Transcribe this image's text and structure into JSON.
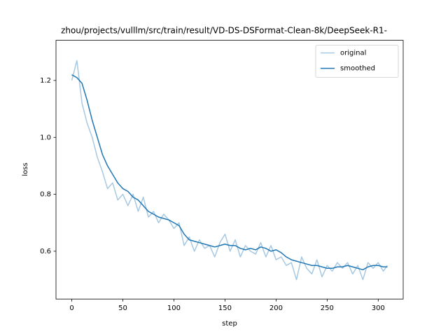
{
  "chart_data": {
    "type": "line",
    "title": "zhou/projects/vulllm/src/train/result/VD-DS-DSFormat-Clean-8k/DeepSeek-R1-",
    "xlabel": "step",
    "ylabel": "loss",
    "x": [
      0,
      5,
      10,
      15,
      20,
      25,
      30,
      35,
      40,
      45,
      50,
      55,
      60,
      65,
      70,
      75,
      80,
      85,
      90,
      95,
      100,
      105,
      110,
      115,
      120,
      125,
      130,
      135,
      140,
      145,
      150,
      155,
      160,
      165,
      170,
      175,
      180,
      185,
      190,
      195,
      200,
      205,
      210,
      215,
      220,
      225,
      230,
      235,
      240,
      245,
      250,
      255,
      260,
      265,
      270,
      275,
      280,
      285,
      290,
      295,
      300,
      305,
      309
    ],
    "series": [
      {
        "name": "original",
        "color": "#a6c8e2",
        "values": [
          1.2,
          1.27,
          1.12,
          1.05,
          1.0,
          0.93,
          0.88,
          0.82,
          0.84,
          0.78,
          0.8,
          0.76,
          0.8,
          0.74,
          0.79,
          0.72,
          0.74,
          0.7,
          0.73,
          0.71,
          0.68,
          0.7,
          0.62,
          0.65,
          0.6,
          0.64,
          0.61,
          0.62,
          0.58,
          0.63,
          0.66,
          0.6,
          0.64,
          0.58,
          0.62,
          0.6,
          0.59,
          0.63,
          0.58,
          0.62,
          0.57,
          0.58,
          0.55,
          0.56,
          0.5,
          0.58,
          0.54,
          0.52,
          0.57,
          0.51,
          0.55,
          0.53,
          0.56,
          0.54,
          0.56,
          0.52,
          0.55,
          0.5,
          0.56,
          0.54,
          0.56,
          0.53,
          0.55
        ]
      },
      {
        "name": "smoothed",
        "color": "#1f77b4",
        "values": [
          1.22,
          1.21,
          1.19,
          1.13,
          1.06,
          1.0,
          0.94,
          0.9,
          0.87,
          0.84,
          0.82,
          0.81,
          0.79,
          0.78,
          0.76,
          0.74,
          0.73,
          0.72,
          0.715,
          0.71,
          0.7,
          0.69,
          0.66,
          0.64,
          0.635,
          0.63,
          0.625,
          0.62,
          0.615,
          0.62,
          0.625,
          0.62,
          0.62,
          0.61,
          0.605,
          0.61,
          0.605,
          0.615,
          0.61,
          0.6,
          0.605,
          0.595,
          0.58,
          0.57,
          0.565,
          0.56,
          0.555,
          0.55,
          0.55,
          0.545,
          0.54,
          0.54,
          0.545,
          0.545,
          0.55,
          0.545,
          0.54,
          0.535,
          0.545,
          0.55,
          0.55,
          0.545,
          0.545
        ]
      }
    ],
    "xlim": [
      -15.45,
      324.45
    ],
    "xticks": [
      0,
      50,
      100,
      150,
      200,
      250,
      300
    ],
    "ylim": [
      0.432,
      1.341
    ],
    "yticks": [
      0.6,
      0.8,
      {
        "value": 1,
        "label": "1.0"
      },
      1.2
    ],
    "grid": false,
    "legend": "upper right"
  }
}
